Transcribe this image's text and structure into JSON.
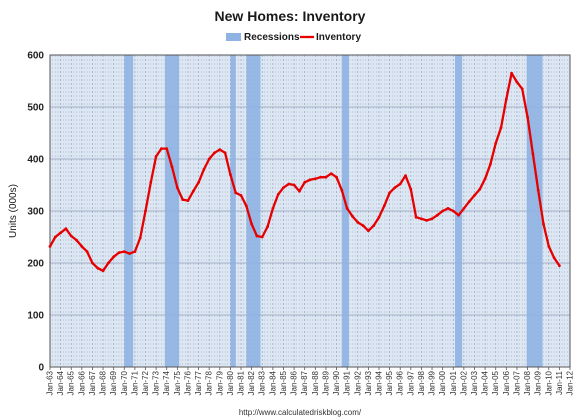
{
  "chart_data": {
    "type": "line",
    "title": "New Homes: Inventory",
    "ylabel": "Units (000s)",
    "xlabel": "",
    "ylim": [
      0,
      600
    ],
    "yticks": [
      0,
      100,
      200,
      300,
      400,
      500,
      600
    ],
    "xlim": [
      "Jan-63",
      "Jan-12"
    ],
    "grid": true,
    "legend_position": "top-center",
    "source": "http://www.calculatedriskblog.com/",
    "colors": {
      "plot_background": "#dde7f3",
      "recession_bands": "#8fb3e2",
      "inventory_line": "#e60000",
      "grid_lines": "#8f9fb8"
    },
    "x_tick_labels": [
      "Jan-63",
      "Jan-64",
      "Jan-65",
      "Jan-66",
      "Jan-67",
      "Jan-68",
      "Jan-69",
      "Jan-70",
      "Jan-71",
      "Jan-72",
      "Jan-73",
      "Jan-74",
      "Jan-75",
      "Jan-76",
      "Jan-77",
      "Jan-78",
      "Jan-79",
      "Jan-80",
      "Jan-81",
      "Jan-82",
      "Jan-83",
      "Jan-84",
      "Jan-85",
      "Jan-86",
      "Jan-87",
      "Jan-88",
      "Jan-89",
      "Jan-90",
      "Jan-91",
      "Jan-92",
      "Jan-93",
      "Jan-94",
      "Jan-95",
      "Jan-96",
      "Jan-97",
      "Jan-98",
      "Jan-99",
      "Jan-00",
      "Jan-01",
      "Jan-02",
      "Jan-03",
      "Jan-04",
      "Jan-05",
      "Jan-06",
      "Jan-07",
      "Jan-08",
      "Jan-09",
      "Jan-10",
      "Jan-11",
      "Jan-12"
    ],
    "legend": [
      {
        "label": "Recessions",
        "kind": "band"
      },
      {
        "label": "Inventory",
        "kind": "line"
      }
    ],
    "recessions": [
      {
        "start": "Jan-70",
        "end": "Nov-70"
      },
      {
        "start": "Nov-73",
        "end": "Mar-75"
      },
      {
        "start": "Jan-80",
        "end": "Jul-80"
      },
      {
        "start": "Jul-81",
        "end": "Nov-82"
      },
      {
        "start": "Jul-90",
        "end": "Mar-91"
      },
      {
        "start": "Mar-01",
        "end": "Nov-01"
      },
      {
        "start": "Dec-07",
        "end": "Jun-09"
      }
    ],
    "series": [
      {
        "name": "Inventory",
        "points": [
          [
            "Jan-63",
            232
          ],
          [
            "Jul-63",
            250
          ],
          [
            "Jan-64",
            258
          ],
          [
            "Jul-64",
            266
          ],
          [
            "Jan-65",
            252
          ],
          [
            "Jul-65",
            244
          ],
          [
            "Jan-66",
            232
          ],
          [
            "Jul-66",
            222
          ],
          [
            "Jan-67",
            200
          ],
          [
            "Jul-67",
            190
          ],
          [
            "Jan-68",
            185
          ],
          [
            "Jul-68",
            200
          ],
          [
            "Jan-69",
            212
          ],
          [
            "Jul-69",
            220
          ],
          [
            "Jan-70",
            222
          ],
          [
            "Jul-70",
            218
          ],
          [
            "Jan-71",
            222
          ],
          [
            "Jul-71",
            248
          ],
          [
            "Jan-72",
            300
          ],
          [
            "Jul-72",
            355
          ],
          [
            "Jan-73",
            405
          ],
          [
            "Jul-73",
            420
          ],
          [
            "Jan-74",
            420
          ],
          [
            "Jul-74",
            385
          ],
          [
            "Jan-75",
            345
          ],
          [
            "Jul-75",
            322
          ],
          [
            "Jan-76",
            320
          ],
          [
            "Jul-76",
            338
          ],
          [
            "Jan-77",
            355
          ],
          [
            "Jul-77",
            380
          ],
          [
            "Jan-78",
            400
          ],
          [
            "Jul-78",
            412
          ],
          [
            "Jan-79",
            418
          ],
          [
            "Jul-79",
            412
          ],
          [
            "Jan-80",
            370
          ],
          [
            "Jul-80",
            335
          ],
          [
            "Jan-81",
            330
          ],
          [
            "Jul-81",
            310
          ],
          [
            "Jan-82",
            275
          ],
          [
            "Jul-82",
            252
          ],
          [
            "Jan-83",
            250
          ],
          [
            "Jul-83",
            270
          ],
          [
            "Jan-84",
            305
          ],
          [
            "Jul-84",
            332
          ],
          [
            "Jan-85",
            345
          ],
          [
            "Jul-85",
            352
          ],
          [
            "Jan-86",
            350
          ],
          [
            "Jul-86",
            338
          ],
          [
            "Jan-87",
            355
          ],
          [
            "Jul-87",
            360
          ],
          [
            "Jan-88",
            362
          ],
          [
            "Jul-88",
            365
          ],
          [
            "Jan-89",
            365
          ],
          [
            "Jul-89",
            372
          ],
          [
            "Jan-90",
            365
          ],
          [
            "Jul-90",
            340
          ],
          [
            "Jan-91",
            305
          ],
          [
            "Jul-91",
            290
          ],
          [
            "Jan-92",
            278
          ],
          [
            "Jul-92",
            272
          ],
          [
            "Jan-93",
            262
          ],
          [
            "Jul-93",
            272
          ],
          [
            "Jan-94",
            288
          ],
          [
            "Jul-94",
            310
          ],
          [
            "Jan-95",
            335
          ],
          [
            "Jul-95",
            345
          ],
          [
            "Jan-96",
            352
          ],
          [
            "Jul-96",
            368
          ],
          [
            "Jan-97",
            342
          ],
          [
            "Jul-97",
            288
          ],
          [
            "Jan-98",
            285
          ],
          [
            "Jul-98",
            282
          ],
          [
            "Jan-99",
            285
          ],
          [
            "Jul-99",
            292
          ],
          [
            "Jan-00",
            300
          ],
          [
            "Jul-00",
            305
          ],
          [
            "Jan-01",
            300
          ],
          [
            "Jul-01",
            292
          ],
          [
            "Jan-02",
            305
          ],
          [
            "Jul-02",
            318
          ],
          [
            "Jan-03",
            330
          ],
          [
            "Jul-03",
            342
          ],
          [
            "Jan-04",
            362
          ],
          [
            "Jul-04",
            390
          ],
          [
            "Jan-05",
            430
          ],
          [
            "Jul-05",
            460
          ],
          [
            "Jan-06",
            515
          ],
          [
            "Jul-06",
            565
          ],
          [
            "Jan-07",
            548
          ],
          [
            "Jul-07",
            535
          ],
          [
            "Jan-08",
            480
          ],
          [
            "Jul-08",
            410
          ],
          [
            "Jan-09",
            340
          ],
          [
            "Jul-09",
            275
          ],
          [
            "Jan-10",
            232
          ],
          [
            "Jul-10",
            210
          ],
          [
            "Jan-11",
            195
          ]
        ]
      }
    ]
  }
}
